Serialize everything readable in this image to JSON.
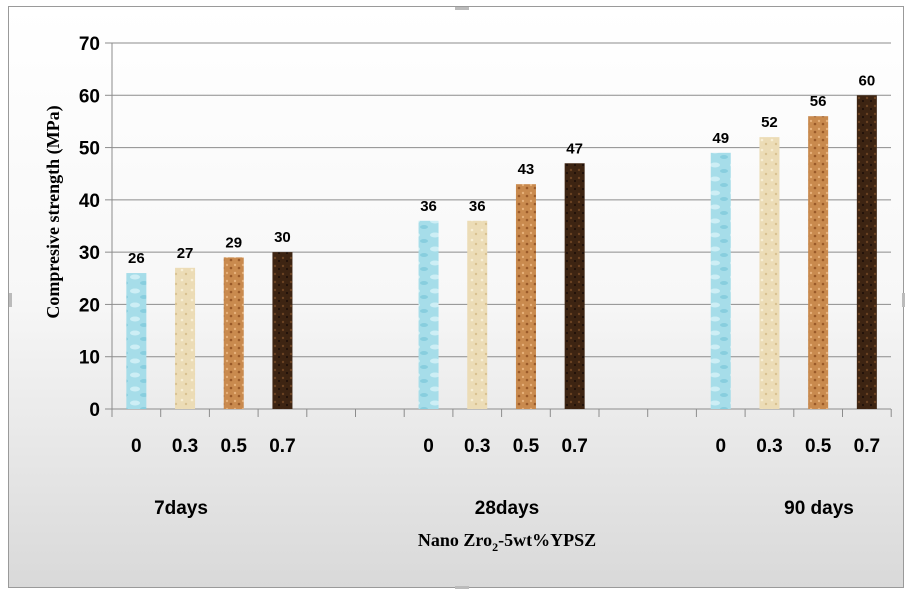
{
  "chart_data": {
    "type": "bar",
    "ylabel": "Compresive strength (MPa)",
    "xlabel_main": "Nano Zro",
    "xlabel_sub": "2",
    "xlabel_tail": "-5wt%YPSZ",
    "ylim": [
      0,
      70
    ],
    "yticks": [
      "0",
      "10",
      "20",
      "30",
      "40",
      "50",
      "60",
      "70"
    ],
    "grid": true,
    "groups": [
      {
        "name": "7days",
        "categories": [
          "0",
          "0.3",
          "0.5",
          "0.7"
        ],
        "values": [
          26,
          27,
          29,
          30
        ]
      },
      {
        "name": "28days",
        "categories": [
          "0",
          "0.3",
          "0.5",
          "0.7"
        ],
        "values": [
          36,
          36,
          43,
          47
        ]
      },
      {
        "name": "90 days",
        "categories": [
          "0",
          "0.3",
          "0.5",
          "0.7"
        ],
        "values": [
          49,
          52,
          56,
          60
        ]
      }
    ],
    "bar_colors": [
      "#9ed9e6",
      "#ead9b0",
      "#c8874a",
      "#3d2412"
    ]
  }
}
